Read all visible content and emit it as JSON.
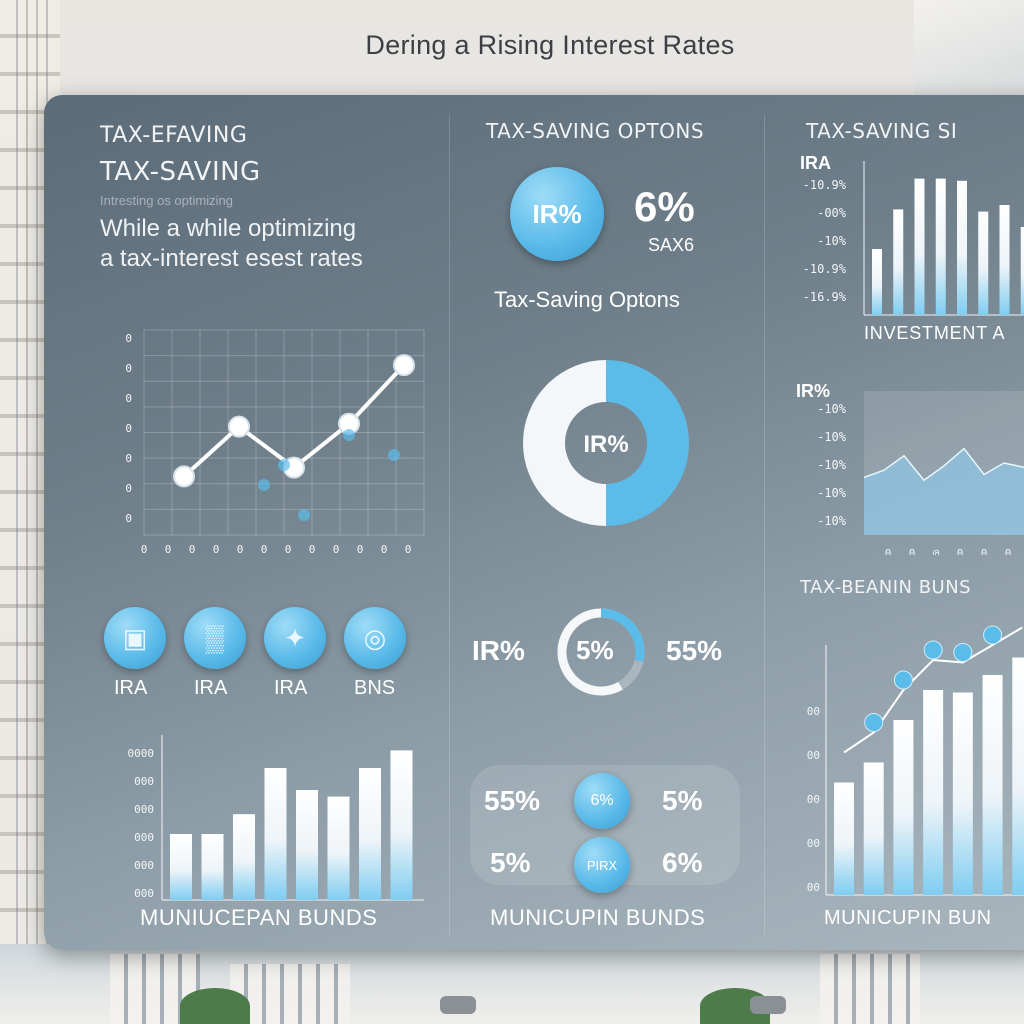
{
  "page_title": "Dering a Rising Interest Rates",
  "left": {
    "heading_1": "TAX-EFAVING",
    "heading_2": "TAX-SAVING",
    "blur_line": "Intresting os optimizing",
    "line_1": "While a while optimizing",
    "line_2": "a tax-interest esest rates",
    "line_chart_x_ticks": [
      "0",
      "0",
      "0",
      "0",
      "0",
      "0",
      "0",
      "0",
      "0",
      "0",
      "0",
      "0"
    ],
    "line_chart_y_ticks": [
      "0",
      "0",
      "0",
      "0",
      "0",
      "0",
      "0"
    ],
    "icons": [
      {
        "label": "IRA",
        "icon": "document-icon"
      },
      {
        "label": "IRA",
        "icon": "chart-icon"
      },
      {
        "label": "IRA",
        "icon": "handshake-icon"
      },
      {
        "label": "BNS",
        "icon": "coins-icon"
      }
    ],
    "bar_y_ticks": [
      "0000",
      "000",
      "000",
      "000",
      "000",
      "000"
    ],
    "bar_footer": "MUNIUCEPAN BUNDS"
  },
  "middle": {
    "heading": "TAX-SAVING OPTONS",
    "circle_label": "IR%",
    "big_value": "6%",
    "big_sub": "SAX6",
    "subheading": "Tax-Saving Optons",
    "donut_center": "IR%",
    "donut_label_left": "IR%",
    "donut_small_center": "5%",
    "donut_label_right": "55%",
    "row1_left": "55%",
    "row1_right": "5%",
    "row2_left": "5%",
    "row2_right": "6%",
    "row1_icon": "6%",
    "row2_icon": "PIRX",
    "footer": "MUNICUPIN BUNDS"
  },
  "right": {
    "heading": "TAX-SAVING SI",
    "bar_label": "IRA",
    "bar_y_ticks": [
      "-10.9%",
      "-00%",
      "-10%",
      "-10.9%",
      "-16.9%"
    ],
    "bar_footer": "INVESTMENT A",
    "area_label": "IR%",
    "area_y_ticks": [
      "-10%",
      "-10%",
      "-10%",
      "-10%",
      "-10%"
    ],
    "area_x_ticks": [
      "0",
      "0",
      "@",
      "0",
      "0",
      "0",
      "0"
    ],
    "heading_2": "TAX-BEANIN BUNS",
    "bar2_y_ticks": [
      "00",
      "00",
      "00",
      "00",
      "00"
    ],
    "bar2_footer": "MUNICUPIN BUN"
  },
  "colors": {
    "accent_blue": "#5bbbe9",
    "bar_white": "#f4f7f9",
    "panel_dark": "#5b6b78"
  },
  "chart_data": [
    {
      "type": "line",
      "x": [
        1,
        2,
        3,
        4,
        5
      ],
      "values": [
        20,
        37,
        23,
        38,
        58
      ],
      "ylim": [
        0,
        70
      ]
    },
    {
      "type": "bar",
      "values": [
        30,
        30,
        39,
        60,
        50,
        47,
        60,
        68
      ],
      "ylim": [
        0,
        75
      ]
    },
    {
      "type": "bar",
      "values": [
        30,
        48,
        62,
        62,
        61,
        47,
        50,
        40
      ],
      "ylim": [
        0,
        70
      ]
    },
    {
      "type": "area",
      "values": [
        40,
        45,
        55,
        38,
        48,
        60,
        42,
        50,
        47,
        55
      ],
      "ylim": [
        0,
        100
      ]
    },
    {
      "type": "bar",
      "values": [
        45,
        53,
        70,
        82,
        81,
        88,
        95
      ],
      "ylim": [
        0,
        100
      ]
    },
    {
      "type": "pie",
      "values": [
        50,
        50
      ]
    }
  ]
}
